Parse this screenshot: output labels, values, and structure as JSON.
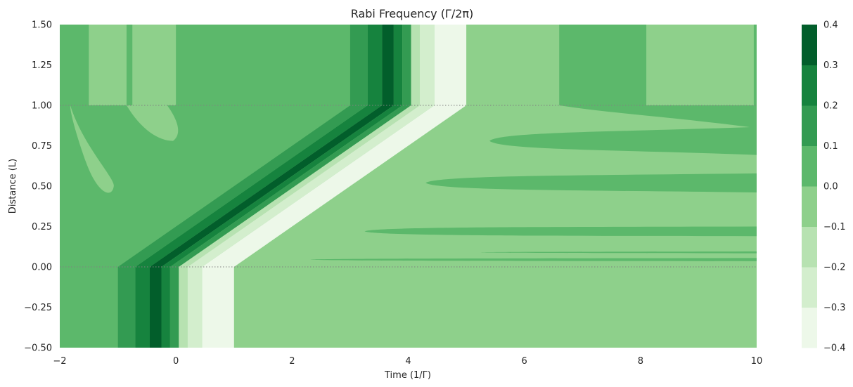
{
  "chart_data": {
    "type": "heatmap",
    "title": "Rabi Frequency (Γ/2π)",
    "xlabel": "Time (1/Γ)",
    "ylabel": "Distance (L)",
    "xlim": [
      -2,
      10
    ],
    "ylim": [
      -0.5,
      1.5
    ],
    "x_ticks": [
      -2,
      0,
      2,
      4,
      6,
      8,
      10
    ],
    "x_tick_labels": [
      "−2",
      "0",
      "2",
      "4",
      "6",
      "8",
      "10"
    ],
    "y_ticks": [
      -0.5,
      -0.25,
      0.0,
      0.25,
      0.5,
      0.75,
      1.0,
      1.25,
      1.5
    ],
    "y_tick_labels": [
      "−0.50",
      "−0.25",
      "0.00",
      "0.25",
      "0.50",
      "0.75",
      "1.00",
      "1.25",
      "1.50"
    ],
    "colorbar": {
      "levels": [
        -0.4,
        -0.3,
        -0.2,
        -0.1,
        0.0,
        0.1,
        0.2,
        0.3,
        0.4
      ],
      "tick_labels": [
        "−0.4",
        "−0.3",
        "−0.2",
        "−0.1",
        "0.0",
        "0.1",
        "0.2",
        "0.3",
        "0.4"
      ],
      "colors": [
        "#edf8e9",
        "#d3eecd",
        "#b7e2b1",
        "#8ed08b",
        "#5cb86b",
        "#339b52",
        "#16833e",
        "#025e2b"
      ]
    },
    "medium_boundaries_y": [
      0.0,
      1.0
    ],
    "background_value": -0.05,
    "lower_region_value": 0.05,
    "pulse": {
      "entry_time": 0.0,
      "exit_time": 4.0,
      "distance_start": 0.0,
      "distance_end": 1.0,
      "band_times": [
        -1.0,
        -0.7,
        -0.45,
        -0.25,
        -0.1,
        0.05,
        0.2,
        0.45,
        1.0
      ],
      "band_values": [
        0.15,
        0.25,
        0.35,
        0.25,
        0.15,
        -0.15,
        -0.25,
        -0.35,
        -0.25
      ]
    },
    "grid": false
  }
}
